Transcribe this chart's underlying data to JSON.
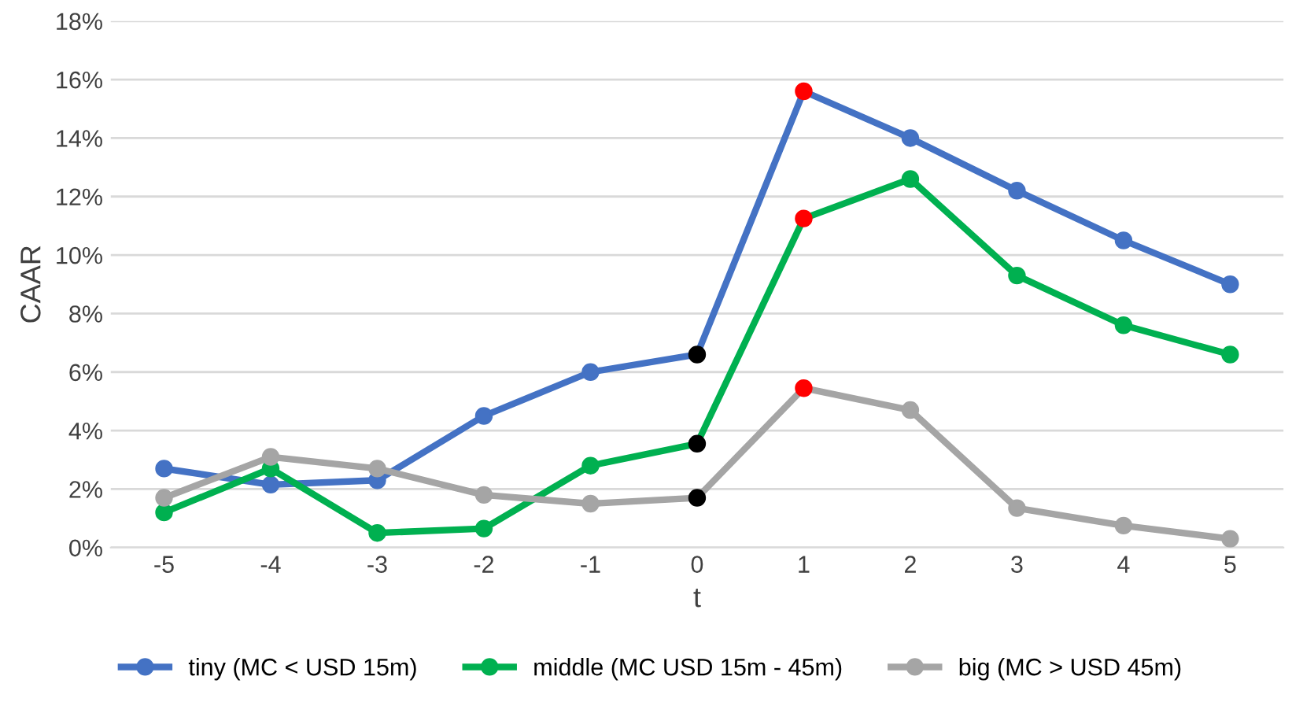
{
  "chart_data": {
    "type": "line",
    "xlabel": "t",
    "ylabel": "CAAR",
    "categories": [
      "-5",
      "-4",
      "-3",
      "-2",
      "-1",
      "0",
      "1",
      "2",
      "3",
      "4",
      "5"
    ],
    "series": [
      {
        "name": "tiny (MC < USD 15m)",
        "color": "#4472c4",
        "values": [
          2.7,
          2.15,
          2.3,
          4.5,
          6.0,
          6.6,
          15.6,
          14.0,
          12.2,
          10.5,
          9.0
        ],
        "colors": [
          "#4472c4",
          "#4472c4",
          "#4472c4",
          "#4472c4",
          "#4472c4",
          "#000000",
          "#ff0000",
          "#4472c4",
          "#4472c4",
          "#4472c4",
          "#4472c4"
        ]
      },
      {
        "name": "middle (MC USD 15m - 45m)",
        "color": "#00b050",
        "values": [
          1.2,
          2.7,
          0.5,
          0.65,
          2.8,
          3.55,
          11.25,
          12.6,
          9.3,
          7.6,
          6.6
        ],
        "colors": [
          "#00b050",
          "#00b050",
          "#00b050",
          "#00b050",
          "#00b050",
          "#000000",
          "#ff0000",
          "#00b050",
          "#00b050",
          "#00b050",
          "#00b050"
        ]
      },
      {
        "name": "big (MC > USD 45m)",
        "color": "#a5a5a5",
        "values": [
          1.7,
          3.1,
          2.7,
          1.8,
          1.5,
          1.7,
          5.45,
          4.7,
          1.35,
          0.75,
          0.3
        ],
        "colors": [
          "#a5a5a5",
          "#a5a5a5",
          "#a5a5a5",
          "#a5a5a5",
          "#a5a5a5",
          "#000000",
          "#ff0000",
          "#a5a5a5",
          "#a5a5a5",
          "#a5a5a5",
          "#a5a5a5"
        ]
      }
    ],
    "ylim": [
      0,
      18
    ],
    "yticks": [
      {
        "value": 0,
        "label": "0%"
      },
      {
        "value": 2,
        "label": "2%"
      },
      {
        "value": 4,
        "label": "4%"
      },
      {
        "value": 6,
        "label": "6%"
      },
      {
        "value": 8,
        "label": "8%"
      },
      {
        "value": 10,
        "label": "10%"
      },
      {
        "value": 12,
        "label": "12%"
      },
      {
        "value": 14,
        "label": "14%"
      },
      {
        "value": 16,
        "label": "16%"
      },
      {
        "value": 18,
        "label": "18%"
      }
    ],
    "grid": "y",
    "legend": "bottom",
    "marker": "circle",
    "line_style": "solid"
  }
}
